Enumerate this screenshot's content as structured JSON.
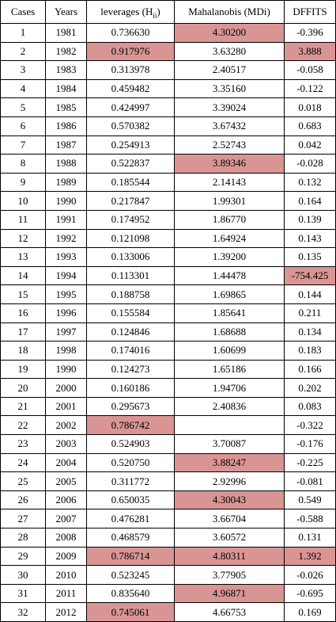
{
  "colors": {
    "highlight": "#d99594"
  },
  "table": {
    "headers": {
      "cases": "Cases",
      "years": "Years",
      "leverages_main": "leverages (H",
      "leverages_sub": "ii",
      "leverages_end": ")",
      "mahalanobis": "Mahalanobis (MDi)",
      "dffits": "DFFITS"
    },
    "rows": [
      {
        "case": "1",
        "year": "1981",
        "lev": "0.736630",
        "mah": "4.30200",
        "dff": "-0.396",
        "hl": [
          "mah"
        ]
      },
      {
        "case": "2",
        "year": "1982",
        "lev": "0.917976",
        "mah": "3.63280",
        "dff": "3.888",
        "hl": [
          "lev",
          "dff"
        ]
      },
      {
        "case": "3",
        "year": "1983",
        "lev": "0.313978",
        "mah": "2.40517",
        "dff": "-0.058",
        "hl": []
      },
      {
        "case": "4",
        "year": "1984",
        "lev": "0.459482",
        "mah": "3.35160",
        "dff": "-0.122",
        "hl": []
      },
      {
        "case": "5",
        "year": "1985",
        "lev": "0.424997",
        "mah": "3.39024",
        "dff": "0.018",
        "hl": []
      },
      {
        "case": "6",
        "year": "1986",
        "lev": "0.570382",
        "mah": "3.67432",
        "dff": "0.683",
        "hl": []
      },
      {
        "case": "7",
        "year": "1987",
        "lev": "0.254913",
        "mah": "2.52743",
        "dff": "0.042",
        "hl": []
      },
      {
        "case": "8",
        "year": "1988",
        "lev": "0.522837",
        "mah": "3.89346",
        "dff": "-0.028",
        "hl": [
          "mah"
        ]
      },
      {
        "case": "9",
        "year": "1989",
        "lev": "0.185544",
        "mah": "2.14143",
        "dff": "0.132",
        "hl": []
      },
      {
        "case": "10",
        "year": "1990",
        "lev": "0.217847",
        "mah": "1.99301",
        "dff": "0.164",
        "hl": []
      },
      {
        "case": "11",
        "year": "1991",
        "lev": "0.174952",
        "mah": "1.86770",
        "dff": "0.139",
        "hl": []
      },
      {
        "case": "12",
        "year": "1992",
        "lev": "0.121098",
        "mah": "1.64924",
        "dff": "0.143",
        "hl": []
      },
      {
        "case": "13",
        "year": "1993",
        "lev": "0.133006",
        "mah": "1.39200",
        "dff": "0.135",
        "hl": []
      },
      {
        "case": "14",
        "year": "1994",
        "lev": "0.113301",
        "mah": "1.44478",
        "dff": "-754.425",
        "hl": [
          "dff"
        ]
      },
      {
        "case": "15",
        "year": "1995",
        "lev": "0.188758",
        "mah": "1.69865",
        "dff": "0.144",
        "hl": []
      },
      {
        "case": "16",
        "year": "1996",
        "lev": "0.155584",
        "mah": "1.85641",
        "dff": "0.211",
        "hl": []
      },
      {
        "case": "17",
        "year": "1997",
        "lev": "0.124846",
        "mah": "1.68688",
        "dff": "0.134",
        "hl": []
      },
      {
        "case": "18",
        "year": "1998",
        "lev": "0.174016",
        "mah": "1.60699",
        "dff": "0.183",
        "hl": []
      },
      {
        "case": "19",
        "year": "1990",
        "lev": "0.124273",
        "mah": "1.65186",
        "dff": "0.166",
        "hl": []
      },
      {
        "case": "20",
        "year": "2000",
        "lev": "0.160186",
        "mah": "1.94706",
        "dff": "0.202",
        "hl": []
      },
      {
        "case": "21",
        "year": "2001",
        "lev": "0.295673",
        "mah": "2.40836",
        "dff": "0.083",
        "hl": []
      },
      {
        "case": "22",
        "year": "2002",
        "lev": "0.786742",
        "mah": "",
        "dff": "-0.322",
        "hl": [
          "lev"
        ]
      },
      {
        "case": "23",
        "year": "2003",
        "lev": "0.524903",
        "mah": "3.70087",
        "dff": "-0.176",
        "hl": []
      },
      {
        "case": "24",
        "year": "2004",
        "lev": "0.520750",
        "mah": "3.88247",
        "dff": "-0.225",
        "hl": [
          "mah"
        ]
      },
      {
        "case": "25",
        "year": "2005",
        "lev": "0.311772",
        "mah": "2.92996",
        "dff": "-0.081",
        "hl": []
      },
      {
        "case": "26",
        "year": "2006",
        "lev": "0.650035",
        "mah": "4.30043",
        "dff": "0.549",
        "hl": [
          "mah"
        ]
      },
      {
        "case": "27",
        "year": "2007",
        "lev": "0.476281",
        "mah": "3.66704",
        "dff": "-0.588",
        "hl": []
      },
      {
        "case": "28",
        "year": "2008",
        "lev": "0.468579",
        "mah": "3.60572",
        "dff": "0.131",
        "hl": []
      },
      {
        "case": "29",
        "year": "2009",
        "lev": "0.786714",
        "mah": "4.80311",
        "dff": "1.392",
        "hl": [
          "lev",
          "mah",
          "dff"
        ]
      },
      {
        "case": "30",
        "year": "2010",
        "lev": "0.523245",
        "mah": "3.77905",
        "dff": "-0.026",
        "hl": []
      },
      {
        "case": "31",
        "year": "2011",
        "lev": "0.835640",
        "mah": "4.96871",
        "dff": "-0.695",
        "hl": [
          "mah"
        ]
      },
      {
        "case": "32",
        "year": "2012",
        "lev": "0.745061",
        "mah": "4.66753",
        "dff": "0.169",
        "hl": [
          "lev"
        ]
      }
    ]
  }
}
